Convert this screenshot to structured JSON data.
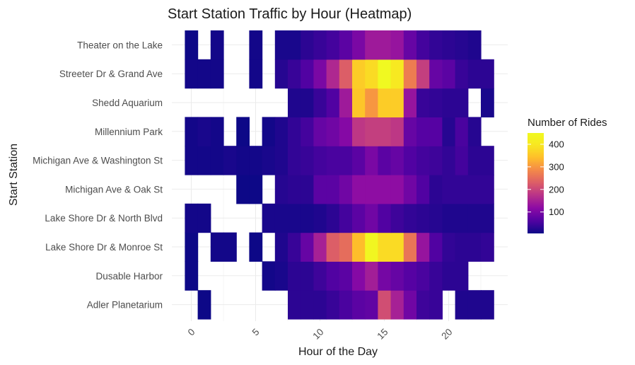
{
  "chart_data": {
    "type": "heatmap",
    "title": "Start Station Traffic by Hour (Heatmap)",
    "xlabel": "Hour of the Day",
    "ylabel": "Start Station",
    "xlim": [
      -1,
      24
    ],
    "x_ticks": [
      0,
      5,
      10,
      15,
      20
    ],
    "x_tick_labels": [
      "0",
      "5",
      "10",
      "15",
      "20"
    ],
    "x": [
      0,
      1,
      2,
      3,
      4,
      5,
      6,
      7,
      8,
      9,
      10,
      11,
      12,
      13,
      14,
      15,
      16,
      17,
      18,
      19,
      20,
      21,
      22,
      23
    ],
    "stations": [
      "Adler Planetarium",
      "Dusable Harbor",
      "Lake Shore Dr & Monroe St",
      "Lake Shore Dr & North Blvd",
      "Michigan Ave & Oak St",
      "Michigan Ave & Washington St",
      "Millennium Park",
      "Shedd Aquarium",
      "Streeter Dr & Grand Ave",
      "Theater on the Lake"
    ],
    "values": [
      [
        null,
        5,
        null,
        null,
        null,
        null,
        null,
        null,
        30,
        30,
        30,
        40,
        55,
        70,
        75,
        210,
        150,
        90,
        45,
        40,
        null,
        20,
        20,
        20
      ],
      [
        5,
        null,
        null,
        null,
        null,
        null,
        10,
        15,
        30,
        30,
        45,
        60,
        70,
        110,
        145,
        95,
        80,
        65,
        55,
        40,
        30,
        30,
        null,
        null
      ],
      [
        5,
        null,
        10,
        10,
        null,
        5,
        null,
        20,
        40,
        80,
        150,
        230,
        250,
        340,
        440,
        380,
        380,
        260,
        130,
        60,
        35,
        30,
        30,
        35
      ],
      [
        10,
        10,
        null,
        null,
        null,
        null,
        15,
        15,
        15,
        15,
        20,
        30,
        50,
        70,
        90,
        60,
        45,
        35,
        30,
        25,
        20,
        20,
        20,
        20
      ],
      [
        null,
        null,
        null,
        null,
        5,
        5,
        null,
        25,
        30,
        30,
        70,
        70,
        90,
        120,
        120,
        120,
        120,
        90,
        60,
        30,
        35,
        35,
        35,
        35
      ],
      [
        10,
        10,
        10,
        15,
        10,
        10,
        15,
        20,
        35,
        40,
        50,
        55,
        55,
        70,
        100,
        70,
        80,
        60,
        50,
        45,
        35,
        50,
        30,
        30
      ],
      [
        10,
        15,
        10,
        null,
        5,
        null,
        10,
        20,
        35,
        50,
        80,
        90,
        110,
        180,
        190,
        190,
        180,
        80,
        65,
        65,
        25,
        55,
        25,
        null
      ],
      [
        null,
        null,
        null,
        null,
        null,
        null,
        null,
        null,
        20,
        20,
        40,
        60,
        140,
        350,
        300,
        360,
        360,
        130,
        40,
        35,
        30,
        30,
        null,
        15
      ],
      [
        10,
        10,
        10,
        null,
        null,
        10,
        null,
        25,
        40,
        60,
        100,
        160,
        230,
        360,
        380,
        450,
        400,
        270,
        190,
        80,
        70,
        40,
        30,
        30
      ],
      [
        5,
        null,
        10,
        null,
        null,
        10,
        null,
        15,
        15,
        30,
        40,
        50,
        70,
        100,
        140,
        140,
        130,
        80,
        50,
        35,
        30,
        25,
        20,
        null
      ]
    ],
    "legend": {
      "title": "Number of Rides",
      "ticks": [
        100,
        200,
        300,
        400
      ],
      "min": 5,
      "max": 450,
      "placement": "right"
    },
    "colormap": "plasma",
    "grid": true
  }
}
